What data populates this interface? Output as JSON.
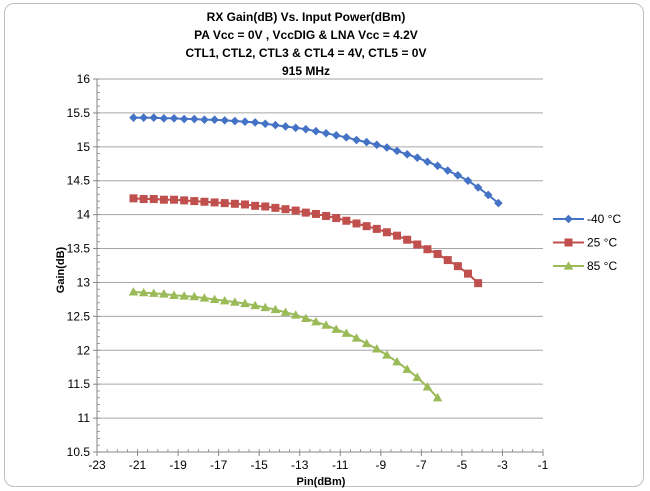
{
  "chart_data": {
    "type": "line",
    "title": [
      "RX Gain(dB) Vs. Input Power(dBm)",
      "PA Vcc = 0V , VccDIG & LNA Vcc = 4.2V",
      "CTL1, CTL2, CTL3 & CTL4 = 4V, CTL5 = 0V",
      "915 MHz"
    ],
    "xlabel": "Pin(dBm)",
    "ylabel": "Gain(dB)",
    "xlim": [
      -23,
      -1
    ],
    "ylim": [
      10.5,
      16
    ],
    "xticks": [
      -23,
      -21,
      -19,
      -17,
      -15,
      -13,
      -11,
      -9,
      -7,
      -5,
      -3,
      -1
    ],
    "yticks": [
      10.5,
      11,
      11.5,
      12,
      12.5,
      13,
      13.5,
      14,
      14.5,
      15,
      15.5,
      16
    ],
    "grid": "horizontal",
    "legend_position": "right",
    "series": [
      {
        "name": "-40 °C",
        "color": "#4472C4",
        "marker": "diamond",
        "x": [
          -21.2,
          -20.7,
          -20.2,
          -19.7,
          -19.2,
          -18.7,
          -18.2,
          -17.7,
          -17.2,
          -16.7,
          -16.2,
          -15.7,
          -15.2,
          -14.7,
          -14.2,
          -13.7,
          -13.2,
          -12.7,
          -12.2,
          -11.7,
          -11.2,
          -10.7,
          -10.2,
          -9.7,
          -9.2,
          -8.7,
          -8.2,
          -7.7,
          -7.2,
          -6.7,
          -6.2,
          -5.7,
          -5.2,
          -4.7,
          -4.2,
          -3.7,
          -3.2
        ],
        "y": [
          15.43,
          15.43,
          15.43,
          15.42,
          15.42,
          15.41,
          15.41,
          15.4,
          15.4,
          15.39,
          15.38,
          15.37,
          15.36,
          15.34,
          15.32,
          15.3,
          15.28,
          15.26,
          15.23,
          15.2,
          15.17,
          15.14,
          15.1,
          15.07,
          15.03,
          14.99,
          14.94,
          14.89,
          14.84,
          14.78,
          14.72,
          14.65,
          14.58,
          14.5,
          14.4,
          14.29,
          14.17
        ]
      },
      {
        "name": "25 °C",
        "color": "#C0504D",
        "marker": "square",
        "x": [
          -21.2,
          -20.7,
          -20.2,
          -19.7,
          -19.2,
          -18.7,
          -18.2,
          -17.7,
          -17.2,
          -16.7,
          -16.2,
          -15.7,
          -15.2,
          -14.7,
          -14.2,
          -13.7,
          -13.2,
          -12.7,
          -12.2,
          -11.7,
          -11.2,
          -10.7,
          -10.2,
          -9.7,
          -9.2,
          -8.7,
          -8.2,
          -7.7,
          -7.2,
          -6.7,
          -6.2,
          -5.7,
          -5.2,
          -4.7,
          -4.2
        ],
        "y": [
          14.24,
          14.23,
          14.23,
          14.22,
          14.22,
          14.21,
          14.2,
          14.19,
          14.18,
          14.17,
          14.16,
          14.15,
          14.13,
          14.12,
          14.1,
          14.08,
          14.06,
          14.03,
          14.01,
          13.98,
          13.95,
          13.91,
          13.87,
          13.83,
          13.79,
          13.74,
          13.69,
          13.63,
          13.56,
          13.49,
          13.42,
          13.33,
          13.24,
          13.13,
          12.99
        ]
      },
      {
        "name": "85 °C",
        "color": "#9BBB59",
        "marker": "triangle",
        "x": [
          -21.2,
          -20.7,
          -20.2,
          -19.7,
          -19.2,
          -18.7,
          -18.2,
          -17.7,
          -17.2,
          -16.7,
          -16.2,
          -15.7,
          -15.2,
          -14.7,
          -14.2,
          -13.7,
          -13.2,
          -12.7,
          -12.2,
          -11.7,
          -11.2,
          -10.7,
          -10.2,
          -9.7,
          -9.2,
          -8.7,
          -8.2,
          -7.7,
          -7.2,
          -6.7,
          -6.2
        ],
        "y": [
          12.86,
          12.85,
          12.84,
          12.83,
          12.81,
          12.8,
          12.79,
          12.77,
          12.75,
          12.73,
          12.71,
          12.69,
          12.66,
          12.63,
          12.6,
          12.56,
          12.52,
          12.47,
          12.42,
          12.37,
          12.31,
          12.25,
          12.18,
          12.1,
          12.02,
          11.93,
          11.83,
          11.72,
          11.6,
          11.46,
          11.3
        ]
      }
    ]
  }
}
